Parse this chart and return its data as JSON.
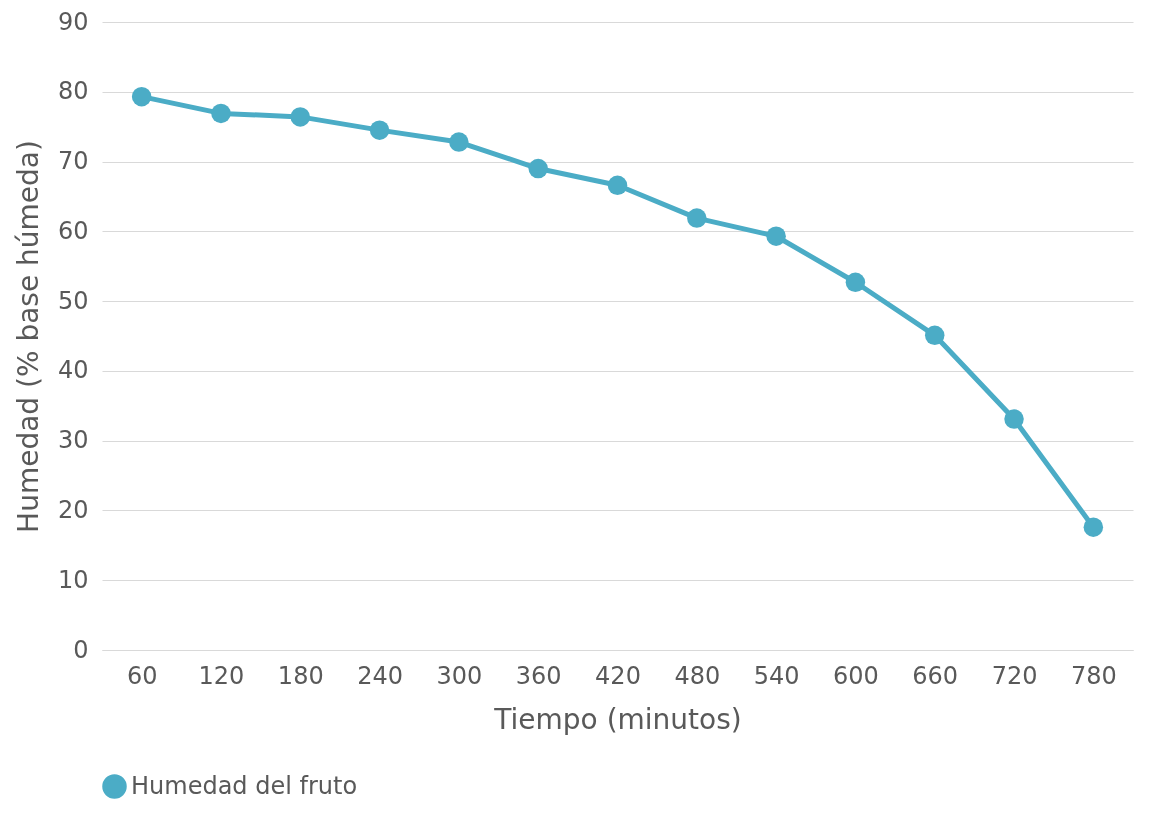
{
  "chart_data": {
    "type": "line",
    "xlabel": "Tiempo (minutos)",
    "ylabel": "Humedad (% base húmeda)",
    "categories": [
      "60",
      "120",
      "180",
      "240",
      "300",
      "360",
      "420",
      "480",
      "540",
      "600",
      "660",
      "720",
      "780"
    ],
    "series": [
      {
        "name": "Humedad del fruto",
        "color": "#4bacc6",
        "values": [
          79.3,
          76.9,
          76.4,
          74.5,
          72.8,
          69.0,
          66.6,
          61.9,
          59.3,
          52.7,
          45.1,
          33.1,
          17.6
        ]
      }
    ],
    "ylim": [
      0,
      90
    ],
    "yticks": [
      0,
      10,
      20,
      30,
      40,
      50,
      60,
      70,
      80,
      90
    ],
    "grid": "y",
    "legend": "bottom",
    "marker": "circle"
  }
}
